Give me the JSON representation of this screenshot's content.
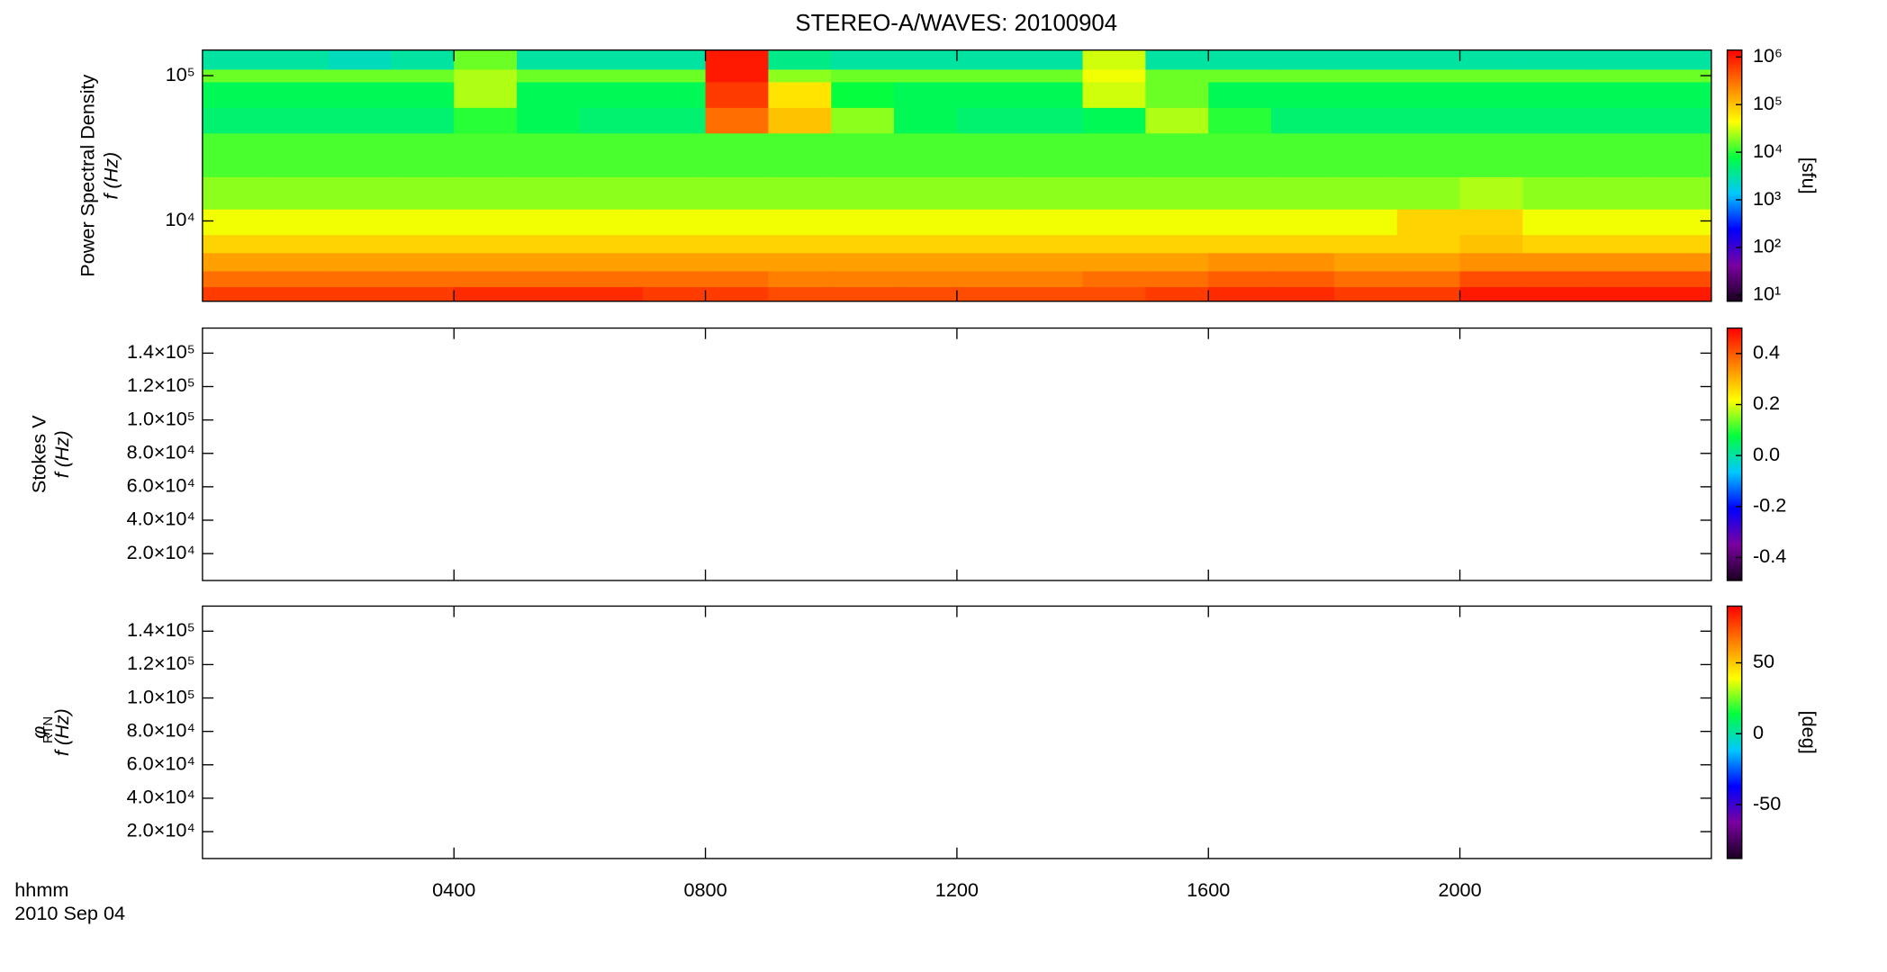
{
  "title": "STEREO-A/WAVES: 20100904",
  "time_label": "hhmm",
  "date_label": "2010 Sep 04",
  "x_axis": {
    "xlim": [
      0,
      24
    ],
    "xticks": [
      {
        "value": 4,
        "label": "0400"
      },
      {
        "value": 8,
        "label": "0800"
      },
      {
        "value": 12,
        "label": "1200"
      },
      {
        "value": 16,
        "label": "1600"
      },
      {
        "value": 20,
        "label": "2000"
      }
    ]
  },
  "colormap": [
    "#1a0020",
    "#7a00a0",
    "#0000ff",
    "#00c8ff",
    "#00ff40",
    "#ffff00",
    "#ff8000",
    "#ff0000"
  ],
  "chart_data": [
    {
      "type": "heatmap",
      "ylabel": [
        "Power Spectral Density",
        "f (Hz)"
      ],
      "log_y": true,
      "ylim": [
        2800,
        150000
      ],
      "yticks": [
        {
          "value": 10000,
          "label": "10⁴"
        },
        {
          "value": 100000,
          "label": "10⁵"
        }
      ],
      "colorbar": {
        "log": true,
        "lim": [
          7.4,
          1400000
        ],
        "label": "[sfu]",
        "ticks": [
          {
            "value": 10,
            "label": "10¹"
          },
          {
            "value": 100,
            "label": "10²"
          },
          {
            "value": 1000,
            "label": "10³"
          },
          {
            "value": 10000,
            "label": "10⁴"
          },
          {
            "value": 100000,
            "label": "10⁵"
          },
          {
            "value": 1000000,
            "label": "10⁶"
          }
        ]
      },
      "x_bins": [
        0,
        1,
        2,
        3,
        4,
        5,
        6,
        7,
        8,
        9,
        10,
        11,
        12,
        13,
        14,
        15,
        16,
        17,
        18,
        19,
        20,
        21,
        22,
        23,
        24
      ],
      "y_bins": [
        150000,
        110000,
        90000,
        60000,
        40000,
        20000,
        12000,
        8000,
        6000,
        4500,
        3500,
        2800
      ],
      "z": [
        [
          3.5,
          3.5,
          3.4,
          3.5,
          4.2,
          3.5,
          3.5,
          3.5,
          6.0,
          3.6,
          3.5,
          3.5,
          3.5,
          3.5,
          4.5,
          3.5,
          3.5,
          3.5,
          3.5,
          3.5,
          3.5,
          3.5,
          3.5,
          3.5
        ],
        [
          4.2,
          4.2,
          4.2,
          4.2,
          4.4,
          4.2,
          4.2,
          4.2,
          6.0,
          4.3,
          4.2,
          4.2,
          4.2,
          4.2,
          4.6,
          4.2,
          4.2,
          4.2,
          4.2,
          4.2,
          4.2,
          4.2,
          4.2,
          4.2
        ],
        [
          3.8,
          3.8,
          3.8,
          3.8,
          4.4,
          3.8,
          3.8,
          3.8,
          5.8,
          4.8,
          3.9,
          3.8,
          3.8,
          3.8,
          4.5,
          4.2,
          3.8,
          3.8,
          3.8,
          3.8,
          3.8,
          3.8,
          3.8,
          3.8
        ],
        [
          3.7,
          3.7,
          3.7,
          3.7,
          4.0,
          3.8,
          3.7,
          3.7,
          5.5,
          5.0,
          4.3,
          3.8,
          3.7,
          3.7,
          3.8,
          4.4,
          4.0,
          3.7,
          3.7,
          3.7,
          3.7,
          3.7,
          3.7,
          3.7
        ],
        [
          4.1,
          4.1,
          4.1,
          4.1,
          4.1,
          4.1,
          4.1,
          4.1,
          4.1,
          4.1,
          4.1,
          4.1,
          4.1,
          4.1,
          4.1,
          4.1,
          4.1,
          4.1,
          4.1,
          4.1,
          4.1,
          4.1,
          4.1,
          4.1
        ],
        [
          4.3,
          4.3,
          4.3,
          4.3,
          4.3,
          4.3,
          4.3,
          4.3,
          4.3,
          4.3,
          4.3,
          4.3,
          4.3,
          4.3,
          4.3,
          4.3,
          4.3,
          4.3,
          4.3,
          4.3,
          4.4,
          4.3,
          4.3,
          4.3
        ],
        [
          4.6,
          4.6,
          4.6,
          4.6,
          4.6,
          4.6,
          4.6,
          4.6,
          4.6,
          4.6,
          4.6,
          4.6,
          4.6,
          4.6,
          4.6,
          4.6,
          4.6,
          4.6,
          4.6,
          4.9,
          4.9,
          4.6,
          4.6,
          4.6
        ],
        [
          4.9,
          4.9,
          4.9,
          4.9,
          4.9,
          4.9,
          4.9,
          4.9,
          4.9,
          4.9,
          4.9,
          4.9,
          4.9,
          4.9,
          4.9,
          4.9,
          4.9,
          4.9,
          4.9,
          4.9,
          5.0,
          4.9,
          4.9,
          4.9
        ],
        [
          5.2,
          5.2,
          5.2,
          5.2,
          5.2,
          5.2,
          5.2,
          5.2,
          5.2,
          5.2,
          5.2,
          5.2,
          5.2,
          5.2,
          5.2,
          5.2,
          5.3,
          5.3,
          5.2,
          5.2,
          5.3,
          5.3,
          5.3,
          5.3
        ],
        [
          5.5,
          5.5,
          5.5,
          5.5,
          5.5,
          5.5,
          5.5,
          5.5,
          5.5,
          5.4,
          5.4,
          5.4,
          5.4,
          5.4,
          5.5,
          5.5,
          5.6,
          5.6,
          5.5,
          5.5,
          5.7,
          5.7,
          5.7,
          5.7
        ],
        [
          5.8,
          5.8,
          5.8,
          5.8,
          5.9,
          5.9,
          5.9,
          5.8,
          5.8,
          5.7,
          5.7,
          5.7,
          5.7,
          5.7,
          5.7,
          5.8,
          5.9,
          5.9,
          5.8,
          5.8,
          6.0,
          6.0,
          6.0,
          6.0
        ]
      ]
    },
    {
      "type": "heatmap",
      "ylabel": [
        "Stokes V",
        "f (Hz)"
      ],
      "log_y": false,
      "ylim": [
        3900,
        155000
      ],
      "yticks": [
        {
          "value": 20000,
          "label": "2.0×10⁴"
        },
        {
          "value": 40000,
          "label": "4.0×10⁴"
        },
        {
          "value": 60000,
          "label": "6.0×10⁴"
        },
        {
          "value": 80000,
          "label": "8.0×10⁴"
        },
        {
          "value": 100000,
          "label": "1.0×10⁵"
        },
        {
          "value": 120000,
          "label": "1.2×10⁵"
        },
        {
          "value": 140000,
          "label": "1.4×10⁵"
        }
      ],
      "colorbar": {
        "log": false,
        "lim": [
          -0.49,
          0.5
        ],
        "ticks": [
          {
            "value": -0.4,
            "label": "-0.4"
          },
          {
            "value": -0.2,
            "label": "-0.2"
          },
          {
            "value": 0,
            "label": "0.0"
          },
          0.2,
          0.4
        ]
      }
    },
    {
      "type": "heatmap",
      "ylabel": [
        "φ",
        "f (Hz)"
      ],
      "ylabel_sub": "RTN",
      "log_y": false,
      "ylim": [
        3900,
        155000
      ],
      "yticks": [
        {
          "value": 20000,
          "label": "2.0×10⁴"
        },
        {
          "value": 40000,
          "label": "4.0×10⁴"
        },
        {
          "value": 60000,
          "label": "6.0×10⁴"
        },
        {
          "value": 80000,
          "label": "8.0×10⁴"
        },
        {
          "value": 100000,
          "label": "1.0×10⁵"
        },
        {
          "value": 120000,
          "label": "1.2×10⁵"
        },
        {
          "value": 140000,
          "label": "1.4×10⁵"
        }
      ],
      "colorbar": {
        "log": false,
        "lim": [
          -88,
          90
        ],
        "label": "[deg]",
        "ticks": [
          -50,
          0,
          50
        ]
      }
    }
  ]
}
